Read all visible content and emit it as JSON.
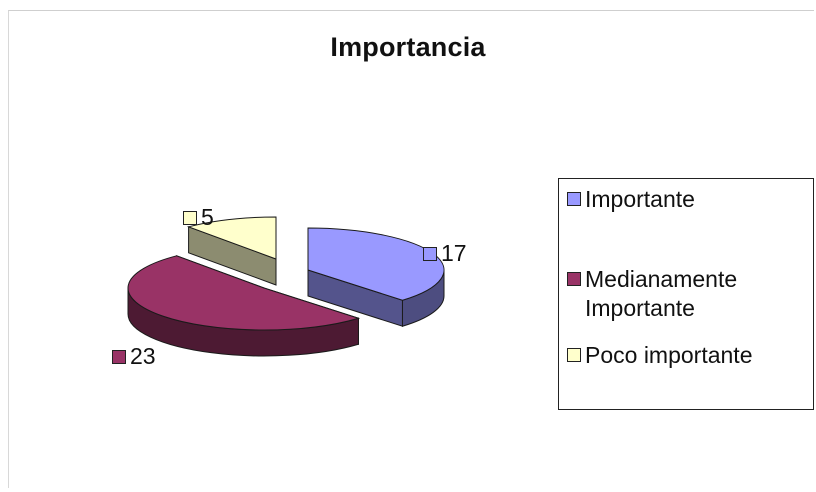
{
  "chart_data": {
    "type": "pie",
    "title": "Importancia",
    "categories": [
      "Importante",
      "Medianamente Importante",
      "Poco importante"
    ],
    "values": [
      17,
      23,
      5
    ],
    "colors": [
      "#9999ff",
      "#993366",
      "#ffffcc"
    ],
    "legend": {
      "position": "right",
      "entries": [
        "Importante",
        "Medianamente Importante",
        "Poco importante"
      ]
    },
    "data_labels": [
      "17",
      "23",
      "5"
    ],
    "three_d": true,
    "exploded": true
  }
}
